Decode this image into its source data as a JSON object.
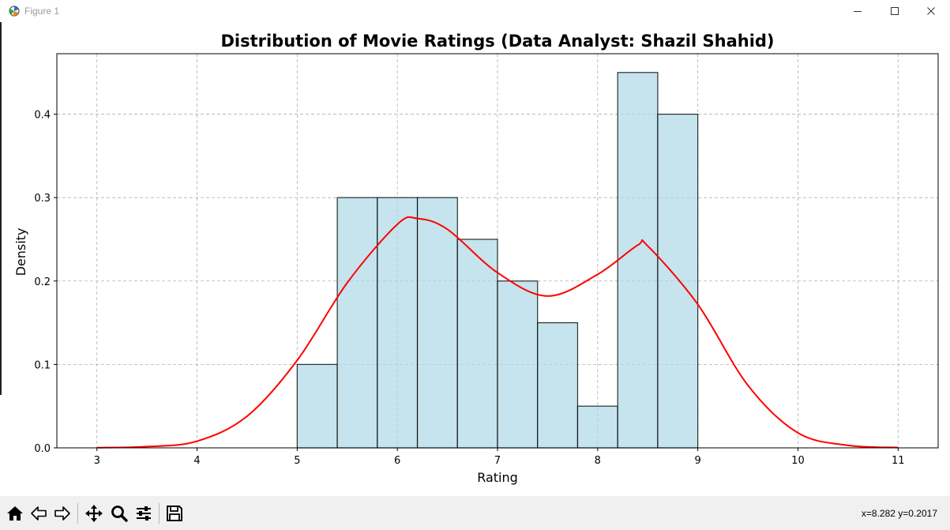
{
  "window": {
    "title": "Figure 1",
    "controls": {
      "minimize": "minimize-icon",
      "maximize": "maximize-icon",
      "close": "close-icon"
    }
  },
  "toolbar": {
    "buttons": [
      {
        "name": "home-button",
        "icon": "home-icon"
      },
      {
        "name": "back-button",
        "icon": "back-arrow-icon"
      },
      {
        "name": "forward-button",
        "icon": "forward-arrow-icon"
      },
      {
        "name": "pan-button",
        "icon": "move-icon"
      },
      {
        "name": "zoom-button",
        "icon": "magnifier-icon"
      },
      {
        "name": "configure-subplots-button",
        "icon": "sliders-icon"
      },
      {
        "name": "save-button",
        "icon": "floppy-disk-icon"
      }
    ],
    "coordinates": "x=8.282 y=0.2017"
  },
  "chart_data": {
    "type": "bar",
    "title": "Distribution of Movie Ratings (Data Analyst: Shazil Shahid)",
    "xlabel": "Rating",
    "ylabel": "Density",
    "xlim": [
      2.6,
      11.4
    ],
    "ylim": [
      0,
      0.4725
    ],
    "xticks": [
      3,
      4,
      5,
      6,
      7,
      8,
      9,
      10,
      11
    ],
    "xtick_labels": [
      "3",
      "4",
      "5",
      "6",
      "7",
      "8",
      "9",
      "10",
      "11"
    ],
    "yticks": [
      0.0,
      0.1,
      0.2,
      0.3,
      0.4
    ],
    "ytick_labels": [
      "0.0",
      "0.1",
      "0.2",
      "0.3",
      "0.4"
    ],
    "grid": true,
    "histogram": {
      "bin_edges": [
        5.0,
        5.4,
        5.8,
        6.2,
        6.6,
        7.0,
        7.4,
        7.8,
        8.2,
        8.6,
        9.0
      ],
      "values": [
        0.1,
        0.3,
        0.3,
        0.3,
        0.25,
        0.2,
        0.15,
        0.05,
        0.45,
        0.4
      ],
      "fill": "#add8e6",
      "edgecolor": "#000000"
    },
    "kde_line": {
      "color": "#ff0000",
      "x": [
        3.0,
        3.5,
        4.0,
        4.5,
        5.0,
        5.5,
        6.0,
        6.2,
        6.5,
        7.0,
        7.5,
        8.0,
        8.4,
        8.5,
        9.0,
        9.5,
        10.0,
        10.5,
        11.0
      ],
      "y": [
        0.0002,
        0.0015,
        0.008,
        0.038,
        0.105,
        0.198,
        0.268,
        0.275,
        0.262,
        0.21,
        0.182,
        0.208,
        0.243,
        0.242,
        0.172,
        0.075,
        0.018,
        0.003,
        0.0004
      ]
    }
  }
}
